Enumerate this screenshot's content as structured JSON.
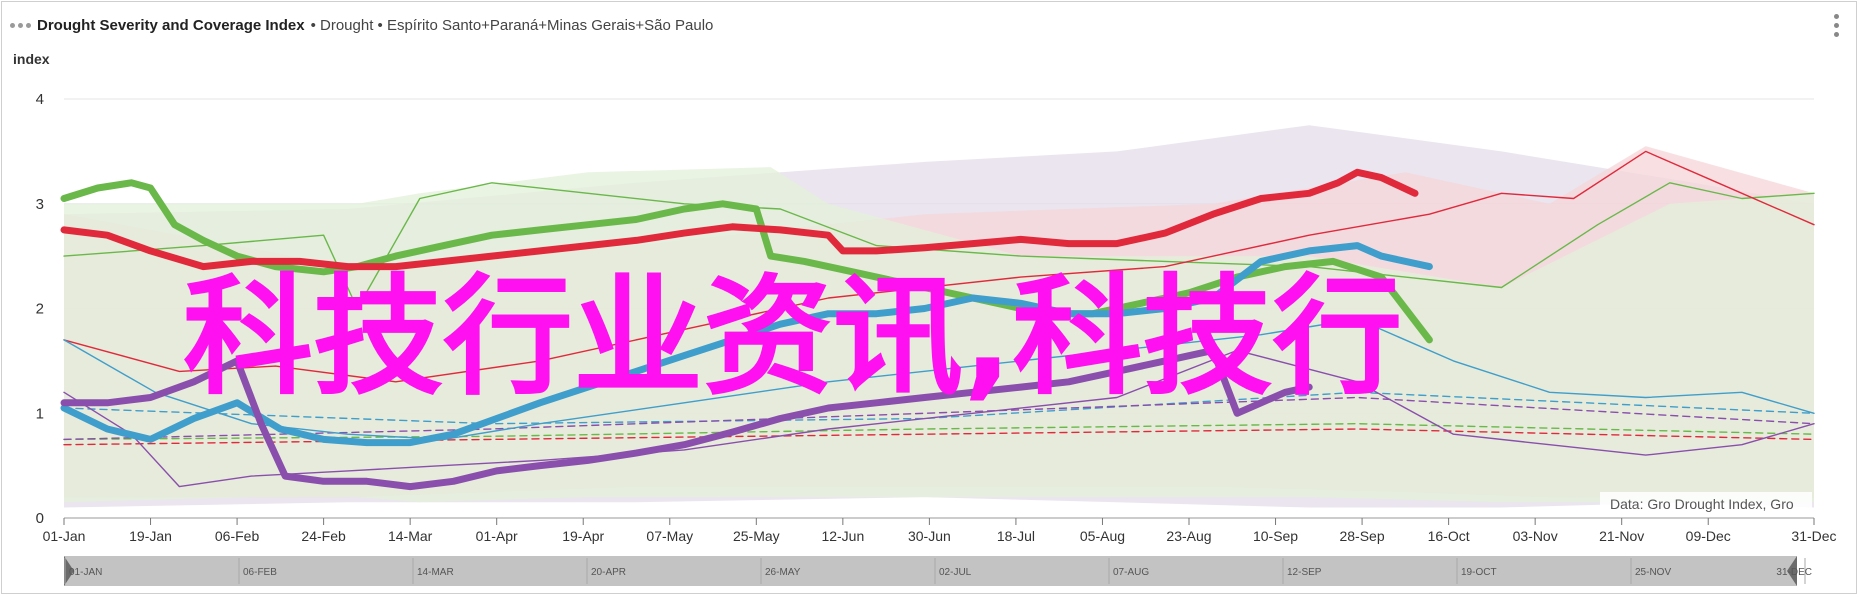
{
  "header": {
    "title": "Drought Severity and Coverage Index",
    "subtitle": "• Drought • Espírito Santo+Paraná+Minas Gerais+São Paulo"
  },
  "watermark": "科技行业资讯,科技行",
  "credit": "Data: Gro Drought Index, Gro",
  "colors": {
    "green": "#6ab84a",
    "red": "#e02a3c",
    "blue": "#3f9ecb",
    "purple": "#8a4fad",
    "band_purple": "#e4dcea",
    "band_red": "#f5d6d8",
    "band_green": "#e3f0da",
    "grid": "#e6e6e6"
  },
  "navigator_labels": [
    "01-JAN",
    "06-FEB",
    "14-MAR",
    "20-APR",
    "26-MAY",
    "02-JUL",
    "07-AUG",
    "12-SEP",
    "19-OCT",
    "25-NOV",
    "31-DEC"
  ],
  "chart_data": {
    "type": "line",
    "title": "Drought Severity and Coverage Index",
    "ylabel": "index",
    "ylim": [
      0,
      4
    ],
    "yticks": [
      0,
      1,
      2,
      3,
      4
    ],
    "x_tick_labels": [
      "01-Jan",
      "19-Jan",
      "06-Feb",
      "24-Feb",
      "14-Mar",
      "01-Apr",
      "19-Apr",
      "07-May",
      "25-May",
      "12-Jun",
      "30-Jun",
      "18-Jul",
      "05-Aug",
      "23-Aug",
      "10-Sep",
      "28-Sep",
      "16-Oct",
      "03-Nov",
      "21-Nov",
      "09-Dec",
      "31-Dec"
    ],
    "x_day_of_year": [
      1,
      19,
      37,
      55,
      73,
      91,
      109,
      127,
      145,
      163,
      181,
      199,
      217,
      235,
      253,
      271,
      289,
      307,
      325,
      343,
      365
    ],
    "grid": true,
    "series": [
      {
        "color": "green",
        "style": "bold",
        "x": [
          1,
          8,
          15,
          19,
          24,
          30,
          37,
          45,
          55,
          62,
          70,
          80,
          90,
          100,
          110,
          120,
          130,
          138,
          145,
          148,
          155,
          165,
          175,
          190,
          205,
          215,
          225,
          235,
          245,
          255,
          265,
          275,
          285
        ],
        "y": [
          3.05,
          3.15,
          3.2,
          3.15,
          2.8,
          2.65,
          2.5,
          2.4,
          2.35,
          2.4,
          2.5,
          2.6,
          2.7,
          2.75,
          2.8,
          2.85,
          2.95,
          3.0,
          2.95,
          2.5,
          2.45,
          2.35,
          2.25,
          2.1,
          1.95,
          1.95,
          2.05,
          2.15,
          2.3,
          2.4,
          2.45,
          2.3,
          1.7
        ]
      },
      {
        "color": "red",
        "style": "bold",
        "x": [
          1,
          10,
          19,
          30,
          40,
          50,
          60,
          70,
          80,
          90,
          100,
          110,
          120,
          130,
          140,
          150,
          160,
          163,
          170,
          180,
          190,
          200,
          210,
          220,
          230,
          240,
          250,
          260,
          266,
          270,
          275,
          282
        ],
        "y": [
          2.75,
          2.7,
          2.55,
          2.4,
          2.45,
          2.45,
          2.4,
          2.4,
          2.45,
          2.5,
          2.55,
          2.6,
          2.65,
          2.72,
          2.78,
          2.75,
          2.7,
          2.55,
          2.55,
          2.58,
          2.62,
          2.66,
          2.62,
          2.62,
          2.72,
          2.9,
          3.05,
          3.1,
          3.2,
          3.3,
          3.25,
          3.1
        ]
      },
      {
        "color": "blue",
        "style": "bold",
        "x": [
          1,
          10,
          19,
          28,
          37,
          46,
          55,
          64,
          73,
          82,
          91,
          100,
          110,
          120,
          130,
          140,
          150,
          160,
          170,
          180,
          190,
          200,
          210,
          220,
          230,
          240,
          250,
          260,
          270,
          275,
          285
        ],
        "y": [
          1.05,
          0.85,
          0.75,
          0.95,
          1.1,
          0.85,
          0.75,
          0.72,
          0.72,
          0.8,
          0.95,
          1.1,
          1.25,
          1.4,
          1.55,
          1.7,
          1.85,
          1.95,
          1.95,
          2.0,
          2.1,
          2.05,
          1.95,
          1.95,
          2.0,
          2.1,
          2.45,
          2.55,
          2.6,
          2.5,
          2.4
        ]
      },
      {
        "color": "purple",
        "style": "bold",
        "x": [
          1,
          10,
          19,
          28,
          37,
          42,
          47,
          55,
          64,
          73,
          82,
          91,
          100,
          110,
          120,
          130,
          140,
          150,
          160,
          170,
          180,
          190,
          200,
          210,
          220,
          230,
          240,
          245,
          250,
          255,
          260
        ],
        "y": [
          1.1,
          1.1,
          1.15,
          1.3,
          1.5,
          0.9,
          0.4,
          0.35,
          0.35,
          0.3,
          0.35,
          0.45,
          0.5,
          0.55,
          0.62,
          0.7,
          0.82,
          0.95,
          1.05,
          1.1,
          1.15,
          1.2,
          1.25,
          1.3,
          1.4,
          1.5,
          1.6,
          1.0,
          1.1,
          1.2,
          1.25
        ]
      },
      {
        "color": "green",
        "style": "thin",
        "x": [
          1,
          30,
          55,
          62,
          75,
          90,
          110,
          130,
          150,
          170,
          200,
          230,
          260,
          280,
          300,
          320,
          335,
          350,
          365
        ],
        "y": [
          2.5,
          2.6,
          2.7,
          2.0,
          3.05,
          3.2,
          3.1,
          3.0,
          2.95,
          2.6,
          2.5,
          2.45,
          2.4,
          2.3,
          2.2,
          2.8,
          3.2,
          3.05,
          3.1
        ]
      },
      {
        "color": "red",
        "style": "thin",
        "x": [
          1,
          25,
          45,
          70,
          100,
          130,
          160,
          200,
          230,
          260,
          285,
          300,
          315,
          330,
          345,
          365
        ],
        "y": [
          1.7,
          1.4,
          1.45,
          1.3,
          1.5,
          1.8,
          2.1,
          2.3,
          2.4,
          2.7,
          2.9,
          3.1,
          3.05,
          3.5,
          3.2,
          2.8
        ]
      },
      {
        "color": "blue",
        "style": "thin",
        "x": [
          1,
          20,
          40,
          60,
          80,
          100,
          130,
          160,
          190,
          220,
          250,
          270,
          290,
          310,
          330,
          350,
          365
        ],
        "y": [
          1.7,
          1.2,
          0.9,
          0.8,
          0.75,
          0.9,
          1.1,
          1.3,
          1.45,
          1.6,
          1.75,
          1.9,
          1.5,
          1.2,
          1.15,
          1.2,
          1.0
        ]
      },
      {
        "color": "purple",
        "style": "thin",
        "x": [
          1,
          15,
          25,
          40,
          60,
          80,
          100,
          130,
          160,
          190,
          220,
          245,
          270,
          290,
          310,
          330,
          350,
          365
        ],
        "y": [
          1.2,
          0.8,
          0.3,
          0.4,
          0.45,
          0.5,
          0.55,
          0.65,
          0.85,
          1.0,
          1.15,
          1.6,
          1.3,
          0.8,
          0.7,
          0.6,
          0.7,
          0.9
        ]
      },
      {
        "color": "green",
        "style": "dashed",
        "x": [
          1,
          90,
          180,
          270,
          365
        ],
        "y": [
          0.75,
          0.78,
          0.85,
          0.9,
          0.8
        ]
      },
      {
        "color": "red",
        "style": "dashed",
        "x": [
          1,
          90,
          180,
          270,
          365
        ],
        "y": [
          0.7,
          0.75,
          0.8,
          0.85,
          0.75
        ]
      },
      {
        "color": "blue",
        "style": "dashed",
        "x": [
          1,
          90,
          180,
          270,
          365
        ],
        "y": [
          1.05,
          0.9,
          0.95,
          1.2,
          1.0
        ]
      },
      {
        "color": "purple",
        "style": "dashed",
        "x": [
          1,
          90,
          180,
          270,
          365
        ],
        "y": [
          0.75,
          0.85,
          1.0,
          1.15,
          0.9
        ]
      }
    ],
    "bands": [
      {
        "color": "band_purple",
        "x": [
          1,
          60,
          120,
          180,
          220,
          260,
          300,
          340,
          365
        ],
        "upper": [
          2.9,
          2.95,
          3.2,
          3.4,
          3.5,
          3.75,
          3.5,
          3.2,
          3.0
        ],
        "lower": [
          0.1,
          0.15,
          0.15,
          0.2,
          0.15,
          0.1,
          0.1,
          0.15,
          0.1
        ]
      },
      {
        "color": "band_red",
        "x": [
          1,
          60,
          120,
          180,
          240,
          280,
          310,
          330,
          365
        ],
        "upper": [
          2.9,
          2.4,
          2.6,
          2.9,
          3.0,
          3.3,
          3.0,
          3.55,
          3.1
        ],
        "lower": [
          0.2,
          0.2,
          0.3,
          0.3,
          0.3,
          0.25,
          0.2,
          0.2,
          0.2
        ]
      },
      {
        "color": "band_green",
        "x": [
          1,
          40,
          62,
          75,
          110,
          148,
          160,
          200,
          260,
          300,
          335,
          365
        ],
        "upper": [
          3.0,
          3.0,
          3.0,
          3.1,
          3.3,
          3.35,
          3.0,
          2.5,
          2.5,
          2.2,
          3.0,
          3.1
        ],
        "lower": [
          0.15,
          0.2,
          0.2,
          0.15,
          0.2,
          0.2,
          0.2,
          0.2,
          0.2,
          0.15,
          0.15,
          0.15
        ]
      }
    ]
  }
}
